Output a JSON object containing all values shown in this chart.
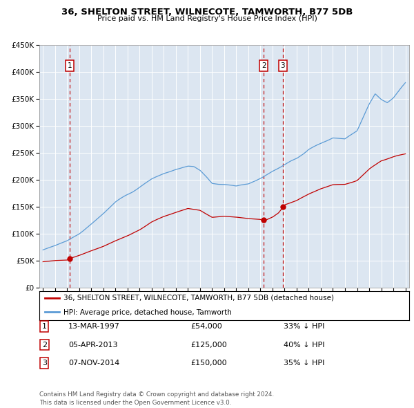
{
  "title": "36, SHELTON STREET, WILNECOTE, TAMWORTH, B77 5DB",
  "subtitle": "Price paid vs. HM Land Registry's House Price Index (HPI)",
  "plot_bg_color": "#dce6f1",
  "hpi_color": "#5b9bd5",
  "price_color": "#c00000",
  "trans_dates_dec": [
    1997.2,
    2013.27,
    2014.85
  ],
  "trans_prices": [
    54000,
    125000,
    150000
  ],
  "trans_labels": [
    "1",
    "2",
    "3"
  ],
  "legend_entries": [
    "36, SHELTON STREET, WILNECOTE, TAMWORTH, B77 5DB (detached house)",
    "HPI: Average price, detached house, Tamworth"
  ],
  "table_rows": [
    {
      "num": "1",
      "date": "13-MAR-1997",
      "price": "£54,000",
      "pct": "33% ↓ HPI"
    },
    {
      "num": "2",
      "date": "05-APR-2013",
      "price": "£125,000",
      "pct": "40% ↓ HPI"
    },
    {
      "num": "3",
      "date": "07-NOV-2014",
      "price": "£150,000",
      "pct": "35% ↓ HPI"
    }
  ],
  "footer": "Contains HM Land Registry data © Crown copyright and database right 2024.\nThis data is licensed under the Open Government Licence v3.0.",
  "ylim": [
    0,
    450000
  ],
  "yticks": [
    0,
    50000,
    100000,
    150000,
    200000,
    250000,
    300000,
    350000,
    400000,
    450000
  ],
  "ytick_labels": [
    "£0",
    "£50K",
    "£100K",
    "£150K",
    "£200K",
    "£250K",
    "£300K",
    "£350K",
    "£400K",
    "£450K"
  ],
  "xlim": [
    1994.7,
    2025.3
  ],
  "xticks": [
    1995,
    1996,
    1997,
    1998,
    1999,
    2000,
    2001,
    2002,
    2003,
    2004,
    2005,
    2006,
    2007,
    2008,
    2009,
    2010,
    2011,
    2012,
    2013,
    2014,
    2015,
    2016,
    2017,
    2018,
    2019,
    2020,
    2021,
    2022,
    2023,
    2024,
    2025
  ]
}
